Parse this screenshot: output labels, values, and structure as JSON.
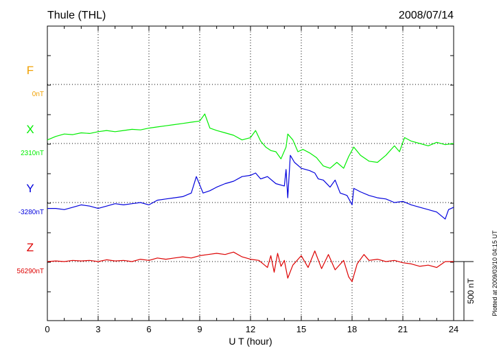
{
  "chart_data": {
    "type": "line",
    "title": "Thule (THL)",
    "date": "2008/07/14",
    "xlabel": "U T (hour)",
    "xlim": [
      0,
      24
    ],
    "x_ticks": [
      "0",
      "3",
      "6",
      "9",
      "12",
      "15",
      "18",
      "21",
      "24"
    ],
    "grid": true,
    "scale_label": "500 nT",
    "plotted_note": "Plotted at 2009/03/10 04:15 UT",
    "series": [
      {
        "name": "F",
        "baseline_label": "0nT",
        "color": "#f0a000",
        "x": [],
        "y": []
      },
      {
        "name": "X",
        "baseline_label": "2310nT",
        "color": "#00ee00",
        "x": [
          0,
          0.5,
          1,
          1.5,
          2,
          2.5,
          3,
          3.5,
          4,
          4.5,
          5,
          5.5,
          6,
          6.5,
          7,
          7.5,
          8,
          8.5,
          9,
          9.3,
          9.6,
          10,
          10.5,
          11,
          11.5,
          12,
          12.3,
          12.6,
          12.9,
          13.2,
          13.5,
          13.8,
          14.1,
          14.2,
          14.5,
          14.8,
          15.1,
          15.5,
          15.9,
          16.3,
          16.7,
          17.1,
          17.5,
          17.8,
          18.1,
          18.5,
          19,
          19.5,
          20,
          20.5,
          20.8,
          21.1,
          21.5,
          22,
          22.5,
          23,
          23.5,
          24
        ],
        "y": [
          2340,
          2370,
          2390,
          2385,
          2400,
          2395,
          2410,
          2420,
          2410,
          2420,
          2430,
          2425,
          2440,
          2450,
          2460,
          2470,
          2480,
          2490,
          2500,
          2560,
          2440,
          2420,
          2400,
          2380,
          2340,
          2360,
          2420,
          2330,
          2280,
          2250,
          2240,
          2180,
          2280,
          2390,
          2340,
          2240,
          2260,
          2230,
          2190,
          2120,
          2100,
          2150,
          2100,
          2200,
          2280,
          2210,
          2160,
          2150,
          2210,
          2290,
          2240,
          2360,
          2330,
          2310,
          2290,
          2320,
          2300,
          2310
        ]
      },
      {
        "name": "Y",
        "baseline_label": "-3280nT",
        "color": "#0000dd",
        "x": [
          0,
          0.5,
          1,
          1.5,
          2,
          2.5,
          3,
          3.5,
          4,
          4.5,
          5,
          5.5,
          6,
          6.5,
          7,
          7.5,
          8,
          8.5,
          8.8,
          9.2,
          9.6,
          10,
          10.5,
          11,
          11.5,
          12,
          12.3,
          12.6,
          13,
          13.5,
          14,
          14.1,
          14.2,
          14.35,
          14.6,
          15,
          15.5,
          15.8,
          16,
          16.3,
          16.7,
          17,
          17.3,
          17.7,
          18,
          18.1,
          18.5,
          19,
          19.5,
          20,
          20.5,
          21,
          21.5,
          22,
          22.5,
          23,
          23.5,
          23.7,
          24
        ],
        "y": [
          -3330,
          -3330,
          -3340,
          -3320,
          -3300,
          -3310,
          -3330,
          -3310,
          -3290,
          -3300,
          -3290,
          -3280,
          -3300,
          -3260,
          -3250,
          -3240,
          -3230,
          -3200,
          -3060,
          -3200,
          -3180,
          -3150,
          -3120,
          -3100,
          -3060,
          -3050,
          -3030,
          -3080,
          -3060,
          -3120,
          -3140,
          -3000,
          -3240,
          -2880,
          -2940,
          -2990,
          -3010,
          -3030,
          -3080,
          -3090,
          -3150,
          -3090,
          -3200,
          -3220,
          -3300,
          -3160,
          -3190,
          -3220,
          -3240,
          -3250,
          -3280,
          -3270,
          -3300,
          -3320,
          -3340,
          -3360,
          -3420,
          -3340,
          -3320
        ]
      },
      {
        "name": "Z",
        "baseline_label": "56290nT",
        "color": "#dd0000",
        "x": [
          0,
          0.5,
          1,
          1.5,
          2,
          2.5,
          3,
          3.5,
          4,
          4.5,
          5,
          5.5,
          6,
          6.5,
          7,
          7.5,
          8,
          8.5,
          9,
          9.5,
          10,
          10.5,
          11,
          11.5,
          12,
          12.5,
          13,
          13.2,
          13.4,
          13.6,
          13.8,
          14,
          14.2,
          14.5,
          15,
          15.4,
          15.8,
          16.2,
          16.6,
          17,
          17.5,
          17.8,
          18,
          18.3,
          18.7,
          19,
          19.5,
          20,
          20.5,
          21,
          21.5,
          22,
          22.5,
          23,
          23.5,
          24
        ],
        "y": [
          56290,
          56295,
          56290,
          56300,
          56295,
          56300,
          56290,
          56305,
          56295,
          56300,
          56290,
          56310,
          56300,
          56320,
          56310,
          56320,
          56330,
          56320,
          56340,
          56350,
          56360,
          56350,
          56370,
          56330,
          56310,
          56300,
          56240,
          56340,
          56200,
          56360,
          56250,
          56300,
          56150,
          56260,
          56340,
          56240,
          56380,
          56230,
          56350,
          56220,
          56300,
          56160,
          56120,
          56270,
          56350,
          56300,
          56310,
          56290,
          56300,
          56280,
          56270,
          56250,
          56260,
          56240,
          56290,
          56290
        ]
      }
    ]
  }
}
